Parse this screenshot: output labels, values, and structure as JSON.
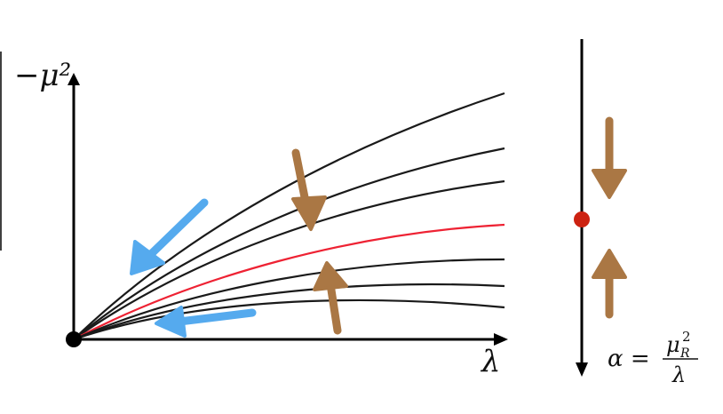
{
  "labels": {
    "y_axis": "−μ²",
    "x_axis": "λ",
    "alpha_lhs": "α =",
    "alpha_num": "μ",
    "alpha_num_sup": "2",
    "alpha_num_sub": "R",
    "alpha_den": "λ"
  },
  "colors": {
    "axis": "#000000",
    "curve": "#1a1a1a",
    "critical_curve": "#ee2233",
    "fixed_point": "#cc2211",
    "flow_blue": "#55aaee",
    "flow_brown": "#aa7744"
  },
  "icons": {
    "origin": "black-dot",
    "fixed_point": "red-dot",
    "flow_arrows": "hand-drawn-arrow"
  }
}
